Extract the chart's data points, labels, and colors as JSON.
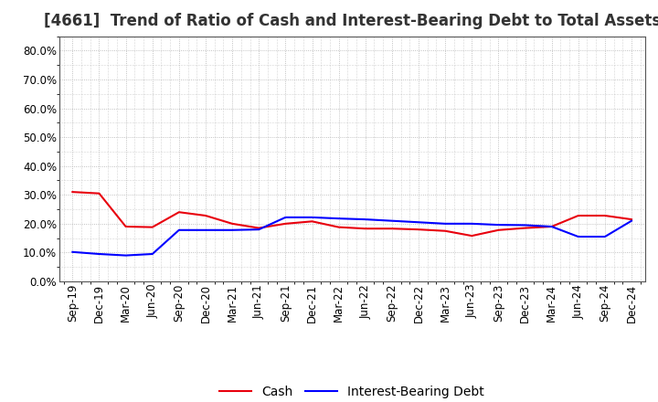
{
  "title": "[4661]  Trend of Ratio of Cash and Interest-Bearing Debt to Total Assets",
  "x_labels": [
    "Sep-19",
    "Dec-19",
    "Mar-20",
    "Jun-20",
    "Sep-20",
    "Dec-20",
    "Mar-21",
    "Jun-21",
    "Sep-21",
    "Dec-21",
    "Mar-22",
    "Jun-22",
    "Sep-22",
    "Dec-22",
    "Mar-23",
    "Jun-23",
    "Sep-23",
    "Dec-23",
    "Mar-24",
    "Jun-24",
    "Sep-24",
    "Dec-24"
  ],
  "cash": [
    0.31,
    0.305,
    0.19,
    0.188,
    0.24,
    0.228,
    0.2,
    0.185,
    0.2,
    0.208,
    0.188,
    0.183,
    0.183,
    0.18,
    0.175,
    0.158,
    0.178,
    0.185,
    0.19,
    0.228,
    0.228,
    0.215
  ],
  "interest_bearing_debt": [
    0.102,
    0.095,
    0.09,
    0.095,
    0.178,
    0.178,
    0.178,
    0.18,
    0.222,
    0.222,
    0.218,
    0.215,
    0.21,
    0.205,
    0.2,
    0.2,
    0.196,
    0.195,
    0.19,
    0.155,
    0.155,
    0.21
  ],
  "cash_color": "#e8000d",
  "ibd_color": "#0000ff",
  "background_color": "#ffffff",
  "plot_bg_color": "#ffffff",
  "grid_color": "#b0b0b0",
  "ylim": [
    0.0,
    0.85
  ],
  "yticks": [
    0.0,
    0.1,
    0.2,
    0.3,
    0.4,
    0.5,
    0.6,
    0.7,
    0.8
  ],
  "legend_cash": "Cash",
  "legend_ibd": "Interest-Bearing Debt",
  "title_fontsize": 12,
  "axis_fontsize": 8.5,
  "legend_fontsize": 10
}
